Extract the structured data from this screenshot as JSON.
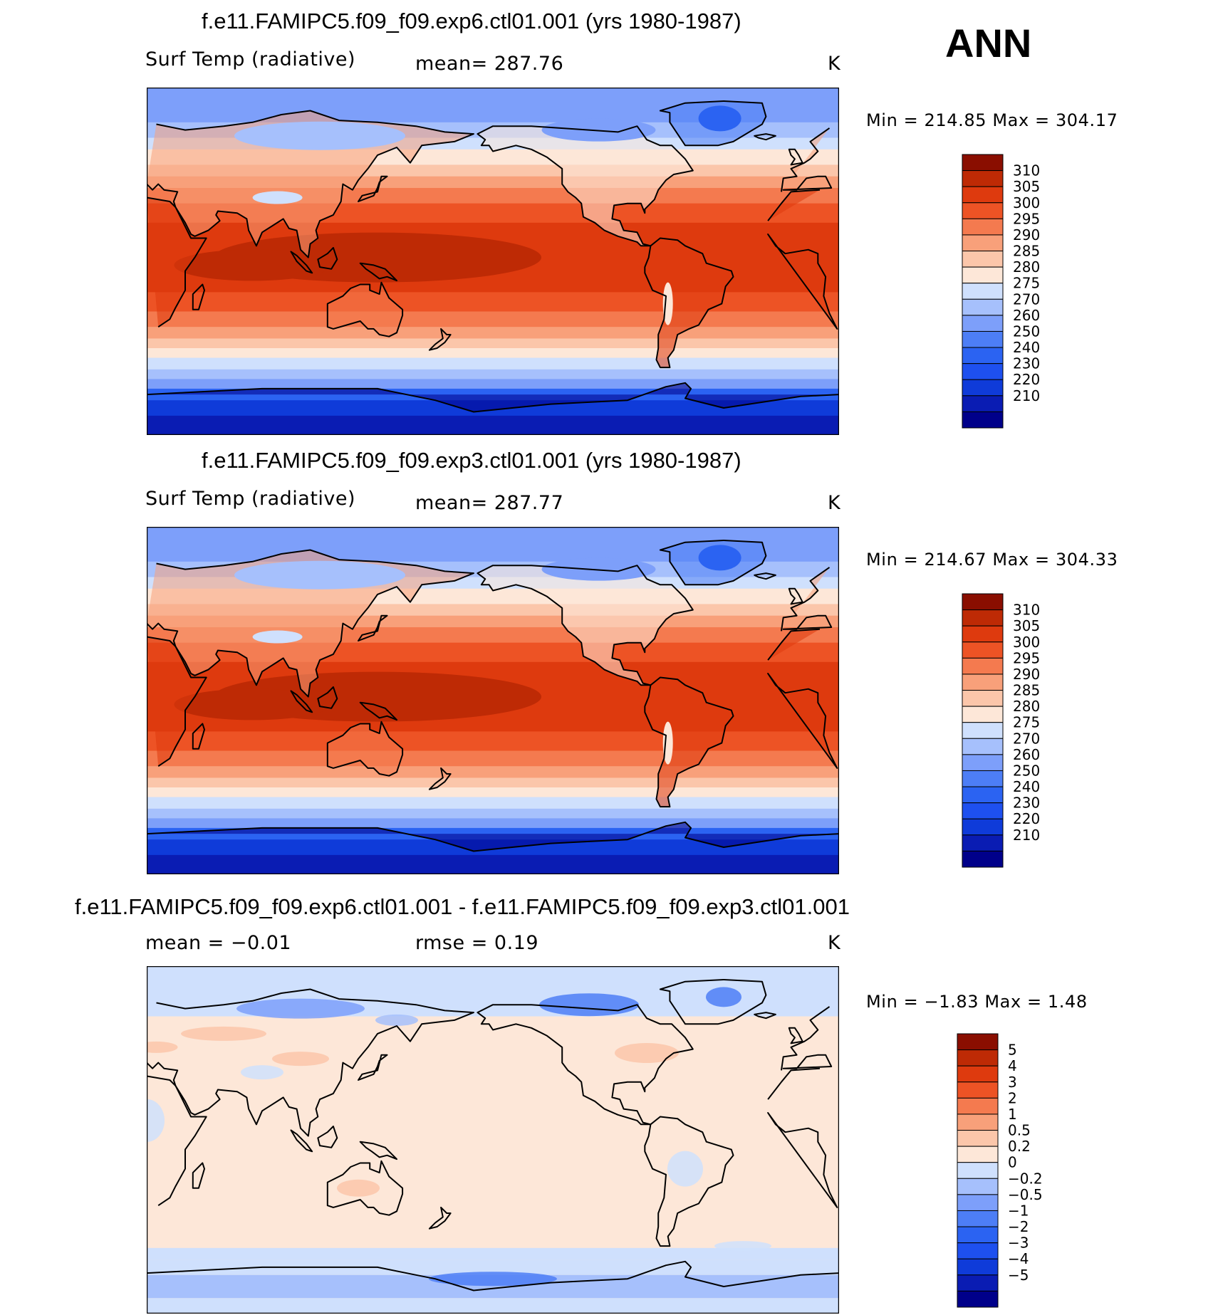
{
  "season": "ANN",
  "colors": {
    "abs_scale": [
      "#00008a",
      "#0a1cb3",
      "#0f3bd9",
      "#1e50ef",
      "#2b63f2",
      "#4d7ef6",
      "#7d9ffa",
      "#a6c0fc",
      "#cfe0fd",
      "#fde7d8",
      "#fbc6aa",
      "#f8a07a",
      "#f47a4f",
      "#ed5325",
      "#de3a0e",
      "#be2a05",
      "#8a0e00"
    ],
    "diff_scale": [
      "#00008a",
      "#0a1cb3",
      "#0f3bd9",
      "#1e50ef",
      "#2b63f2",
      "#4d7ef6",
      "#7d9ffa",
      "#a6c0fc",
      "#cfe0fd",
      "#fde7d8",
      "#fbc6aa",
      "#f8a07a",
      "#f47a4f",
      "#ed5325",
      "#de3a0e",
      "#be2a05",
      "#8a0e00"
    ],
    "coast": "#000000"
  },
  "panels": [
    {
      "title": "f.e11.FAMIPC5.f09_f09.exp6.ctl01.001 (yrs 1980-1987)",
      "left_label": "Surf Temp (radiative)",
      "center_label": "mean= 287.76",
      "units": "K",
      "minmax": "Min = 214.85 Max = 304.17",
      "kind": "abs",
      "colorbar_labels": [
        "310",
        "305",
        "300",
        "295",
        "290",
        "285",
        "280",
        "275",
        "270",
        "260",
        "250",
        "240",
        "230",
        "220",
        "210"
      ]
    },
    {
      "title": "f.e11.FAMIPC5.f09_f09.exp3.ctl01.001 (yrs 1980-1987)",
      "left_label": "Surf Temp (radiative)",
      "center_label": "mean= 287.77",
      "units": "K",
      "minmax": "Min = 214.67 Max = 304.33",
      "kind": "abs",
      "colorbar_labels": [
        "310",
        "305",
        "300",
        "295",
        "290",
        "285",
        "280",
        "275",
        "270",
        "260",
        "250",
        "240",
        "230",
        "220",
        "210"
      ]
    },
    {
      "title": "f.e11.FAMIPC5.f09_f09.exp6.ctl01.001 - f.e11.FAMIPC5.f09_f09.exp3.ctl01.001",
      "left_label": "mean = −0.01",
      "center_label": "rmse = 0.19",
      "units": "K",
      "minmax": "Min = −1.83 Max = 1.48",
      "kind": "diff",
      "colorbar_labels": [
        "5",
        "4",
        "3",
        "2",
        "1",
        "0.5",
        "0.2",
        "0",
        "−0.2",
        "−0.5",
        "−1",
        "−2",
        "−3",
        "−4",
        "−5"
      ]
    }
  ]
}
